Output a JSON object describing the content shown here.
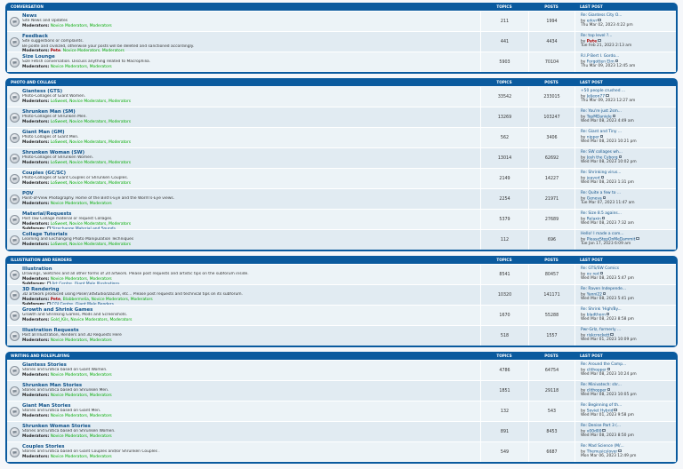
{
  "headers": {
    "topics": "TOPICS",
    "posts": "POSTS",
    "last_post": "LAST POST"
  },
  "categories": [
    {
      "title": "CONVERSATION",
      "forums": [
        {
          "name": "News",
          "desc": "Site News and Updates",
          "mods_label": "Moderators:",
          "mods": [
            {
              "t": "Novice Moderators",
              "c": "g"
            },
            {
              "t": "Moderators",
              "c": "g"
            }
          ],
          "sub": null,
          "topics": "211",
          "posts": "1994",
          "last_title": "Re: Giantess City O...",
          "last_author": "erkvr",
          "last_date": "Thu Mar 02, 2023 4:22 pm"
        },
        {
          "name": "Feedback",
          "desc": "Site suggestions or complaints.",
          "desc2": "Be polite and civilized, otherwise your posts will be deleted and sanctioned accordingly.",
          "mods_label": "Moderators:",
          "mods": [
            {
              "t": "Pete",
              "c": "r"
            },
            {
              "t": "Novice Moderators",
              "c": "g"
            },
            {
              "t": "Moderators",
              "c": "g"
            }
          ],
          "sub": null,
          "topics": "441",
          "posts": "4434",
          "last_title": "Re: top level ?...",
          "last_author": "Pete",
          "last_date": "Tue Feb 21, 2023 2:13 am"
        },
        {
          "name": "Size Lounge",
          "desc": "Size Fetish conversation. Discuss anything related to Macrophilia.",
          "mods_label": "Moderators:",
          "mods": [
            {
              "t": "Novice Moderators",
              "c": "g"
            },
            {
              "t": "Moderators",
              "c": "g"
            }
          ],
          "sub": null,
          "topics": "5903",
          "posts": "70104",
          "last_title": "R.I.P Bert I. Gordo...",
          "last_author": "Forgotten Elm",
          "last_date": "Thu Mar 09, 2023 12:45 am"
        }
      ]
    },
    {
      "title": "PHOTO AND COLLAGE",
      "forums": [
        {
          "name": "Giantess (GTS)",
          "desc": "Photo-Collages of Giant Women.",
          "mods_label": "Moderators:",
          "mods": [
            {
              "t": "LoSweet",
              "c": "g"
            },
            {
              "t": "Novice Moderators",
              "c": "g"
            },
            {
              "t": "Moderators",
              "c": "g"
            }
          ],
          "sub": null,
          "topics": "33542",
          "posts": "233015",
          "last_title": "+50 people crushed ...",
          "last_author": "Jeljeon77",
          "last_date": "Thu Mar 09, 2023 12:27 am"
        },
        {
          "name": "Shrunken Man (SM)",
          "desc": "Photo-Collages of Shrunken Men.",
          "mods_label": "Moderators:",
          "mods": [
            {
              "t": "LoSweet",
              "c": "g"
            },
            {
              "t": "Novice Moderators",
              "c": "g"
            },
            {
              "t": "Moderators",
              "c": "g"
            }
          ],
          "sub": null,
          "topics": "13269",
          "posts": "103247",
          "last_title": "Re: You're just 2sm...",
          "last_author": "TopMDaniele",
          "last_date": "Wed Mar 08, 2023 4:49 am"
        },
        {
          "name": "Giant Man (GM)",
          "desc": "Photo Collages of Giant Men.",
          "mods_label": "Moderators:",
          "mods": [
            {
              "t": "LoSweet",
              "c": "g"
            },
            {
              "t": "Novice Moderators",
              "c": "g"
            },
            {
              "t": "Moderators",
              "c": "g"
            }
          ],
          "sub": null,
          "topics": "562",
          "posts": "3406",
          "last_title": "Re: Giant and Tiny ...",
          "last_author": "nipper",
          "last_date": "Wed Mar 08, 2023 10:21 pm"
        },
        {
          "name": "Shrunken Woman (SW)",
          "desc": "Photo-Collages of Shrunken Women.",
          "mods_label": "Moderators:",
          "mods": [
            {
              "t": "LoSweet",
              "c": "g"
            },
            {
              "t": "Novice Moderators",
              "c": "g"
            },
            {
              "t": "Moderators",
              "c": "g"
            }
          ],
          "sub": null,
          "topics": "13014",
          "posts": "62692",
          "last_title": "Re: SW collages wh...",
          "last_author": "Josh the Cyborg",
          "last_date": "Wed Mar 08, 2023 10:02 pm"
        },
        {
          "name": "Couples (GC/SC)",
          "desc": "Photo-Collages of Giant Couples or Shrunken Couples.",
          "mods_label": "Moderators:",
          "mods": [
            {
              "t": "LoSweet",
              "c": "g"
            },
            {
              "t": "Novice Moderators",
              "c": "g"
            },
            {
              "t": "Moderators",
              "c": "g"
            }
          ],
          "sub": null,
          "topics": "2149",
          "posts": "14227",
          "last_title": "Re: Shrinking virus...",
          "last_author": "jeaved",
          "last_date": "Wed Mar 08, 2023 1:31 pm"
        },
        {
          "name": "POV",
          "desc": "Point-of-View Photography. Home of the Bird's-Eye and the Worm's-Eye views.",
          "mods_label": "Moderators:",
          "mods": [
            {
              "t": "Novice Moderators",
              "c": "g"
            },
            {
              "t": "Moderators",
              "c": "g"
            }
          ],
          "sub": null,
          "topics": "2254",
          "posts": "21971",
          "last_title": "Re: Quite a few to ...",
          "last_author": "Geneva",
          "last_date": "Tue Mar 07, 2023 11:47 am"
        },
        {
          "name": "Material/Requests",
          "desc": "Post raw Collage material or request Collages.",
          "mods_label": "Moderators:",
          "mods": [
            {
              "t": "LoSweet",
              "c": "g"
            },
            {
              "t": "Novice Moderators",
              "c": "g"
            },
            {
              "t": "Moderators",
              "c": "g"
            }
          ],
          "sub": "Sizechange Material and Sounds",
          "topics": "5379",
          "posts": "27689",
          "last_title": "Re: Size 8.5 agains...",
          "last_author": "Relaxin",
          "last_date": "Wed Mar 08, 2023 7:32 am"
        },
        {
          "name": "Collage Tutorials",
          "desc": "Learning and Exchanging Photo Manipulation Techniques",
          "mods_label": "Moderators:",
          "mods": [
            {
              "t": "LoSweet",
              "c": "g"
            },
            {
              "t": "Novice Moderators",
              "c": "g"
            },
            {
              "t": "Moderators",
              "c": "g"
            }
          ],
          "sub": null,
          "topics": "112",
          "posts": "696",
          "last_title": "Hello! I made a com...",
          "last_author": "PleaseStepOnMeDammit",
          "last_date": "Tue Jan 17, 2023 6:09 am"
        }
      ]
    },
    {
      "title": "ILLUSTRATION AND RENDERS",
      "forums": [
        {
          "name": "Illustration",
          "desc": "Drawings, Sketches and all other forms of 2d artwork. Please post requests and artistic tips on the subforum inside.",
          "mods_label": "Moderators:",
          "mods": [
            {
              "t": "Novice Moderators",
              "c": "g"
            },
            {
              "t": "Moderators",
              "c": "g"
            }
          ],
          "sub": "Art Centre, Giant Male Illustrations",
          "topics": "8541",
          "posts": "80457",
          "last_title": "Re: GTS/SW Comics",
          "last_author": "ov red",
          "last_date": "Wed Mar 08, 2023 5:47 pm"
        },
        {
          "name": "3D Rendering",
          "desc": "3D artwork produced using Poser/3dStudio/Daz3d, etc... Please post requests and technical tips on its subforum.",
          "mods_label": "Moderators:",
          "mods": [
            {
              "t": "Pete",
              "c": "r"
            },
            {
              "t": "Blabbermelia",
              "c": "g"
            },
            {
              "t": "Novice Moderators",
              "c": "g"
            },
            {
              "t": "Moderators",
              "c": "g"
            }
          ],
          "sub": "CGI Centre, Giant Male Renders",
          "topics": "10320",
          "posts": "141171",
          "last_title": "Re: Raven Independe...",
          "last_author": "Yanni22",
          "last_date": "Wed Mar 08, 2023 5:41 pm"
        },
        {
          "name": "Growth and Shrink Games",
          "desc": "Growth and Shrinking Games, Mods and Screenshots.",
          "mods_label": "Moderators:",
          "mods": [
            {
              "t": "Gold_Kils",
              "c": "g"
            },
            {
              "t": "Novice Moderators",
              "c": "g"
            },
            {
              "t": "Moderators",
              "c": "g"
            }
          ],
          "sub": null,
          "topics": "1670",
          "posts": "55288",
          "last_title": "Re: Shrink 'High/By...",
          "last_author": "bladthorn",
          "last_date": "Wed Mar 08, 2023 8:58 pm"
        },
        {
          "name": "Illustration Requests",
          "desc": "Post all Illustration, Renders and 3D Requests Here",
          "mods_label": "Moderators:",
          "mods": [
            {
              "t": "Novice Moderators",
              "c": "g"
            },
            {
              "t": "Moderators",
              "c": "g"
            }
          ],
          "sub": null,
          "topics": "518",
          "posts": "1557",
          "last_title": "Pwr-Grlz, formerly ...",
          "last_author": "riskcrockett",
          "last_date": "Wed Mar 01, 2023 10:09 pm"
        }
      ]
    },
    {
      "title": "WRITING AND ROLEPLAYING",
      "forums": [
        {
          "name": "Giantess Stories",
          "desc": "Stories and Erotica based on Giant Women.",
          "mods_label": "Moderators:",
          "mods": [
            {
              "t": "Novice Moderators",
              "c": "g"
            },
            {
              "t": "Moderators",
              "c": "g"
            }
          ],
          "sub": null,
          "topics": "4786",
          "posts": "64754",
          "last_title": "Re: Around the Camp...",
          "last_author": "clithopper",
          "last_date": "Wed Mar 08, 2023 10:24 pm"
        },
        {
          "name": "Shrunken Man Stories",
          "desc": "Stories and Erotica based on Shrunken Men.",
          "mods_label": "Moderators:",
          "mods": [
            {
              "t": "Novice Moderators",
              "c": "g"
            },
            {
              "t": "Moderators",
              "c": "g"
            }
          ],
          "sub": null,
          "topics": "1851",
          "posts": "29118",
          "last_title": "Re: Minivatech: shr...",
          "last_author": "clithopper",
          "last_date": "Wed Mar 08, 2023 10:05 pm"
        },
        {
          "name": "Giant Man Stories",
          "desc": "Stories and Erotica based on Giant Men.",
          "mods_label": "Moderators:",
          "mods": [
            {
              "t": "Novice Moderators",
              "c": "g"
            },
            {
              "t": "Moderators",
              "c": "g"
            }
          ],
          "sub": null,
          "topics": "132",
          "posts": "543",
          "last_title": "Re: Beginning of th...",
          "last_author": "Soviet Hybrid",
          "last_date": "Wed Mar 01, 2023 9:58 pm"
        },
        {
          "name": "Shrunken Woman Stories",
          "desc": "Stories and Erotica based on Shrunken Women.",
          "mods_label": "Moderators:",
          "mods": [
            {
              "t": "Novice Moderators",
              "c": "g"
            },
            {
              "t": "Moderators",
              "c": "g"
            }
          ],
          "sub": null,
          "topics": "891",
          "posts": "8453",
          "last_title": "Re: Denise Part 3 (...",
          "last_author": "v00d00",
          "last_date": "Wed Mar 08, 2023 8:50 pm"
        },
        {
          "name": "Couples Stories",
          "desc": "Stories and Erotica based on Giant Couples and/or Shrunken Couples .",
          "mods_label": "Moderators:",
          "mods": [
            {
              "t": "Novice Moderators",
              "c": "g"
            },
            {
              "t": "Moderators",
              "c": "g"
            }
          ],
          "sub": null,
          "topics": "549",
          "posts": "6687",
          "last_title": "Re: Mad Science (M/...",
          "last_author": "Themusicslover",
          "last_date": "Mon Mar 06, 2023 12:49 pm"
        }
      ]
    }
  ],
  "labels": {
    "by": "by",
    "subforum": "Subforum:"
  },
  "icons": {
    "forum": "forum-read-icon",
    "goto": "goto-post-icon",
    "subforum": "subforum-icon"
  },
  "colors": {
    "category": "#0a5a9e",
    "row_a": "#ecf3f7",
    "row_b": "#e1ebf2",
    "link": "#105289",
    "moderator": "#00aa00",
    "admin": "#aa0000"
  }
}
